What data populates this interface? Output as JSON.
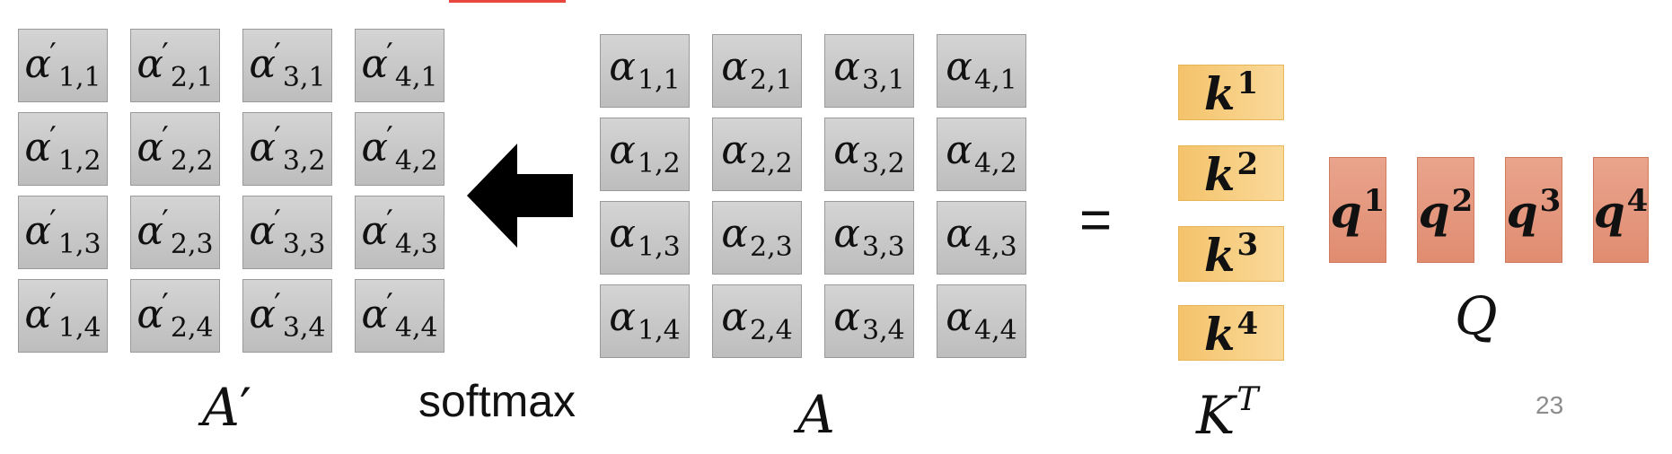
{
  "colors": {
    "cell": "#c8c8c8",
    "k_box": "#f6cd7e",
    "q_box": "#e69a80",
    "arrow": "#000000",
    "accent_bar": "#e8453c"
  },
  "a_prime_matrix": {
    "cells": [
      {
        "base": "α",
        "sub": "1,1",
        "prime": "′"
      },
      {
        "base": "α",
        "sub": "2,1",
        "prime": "′"
      },
      {
        "base": "α",
        "sub": "3,1",
        "prime": "′"
      },
      {
        "base": "α",
        "sub": "4,1",
        "prime": "′"
      },
      {
        "base": "α",
        "sub": "1,2",
        "prime": "′"
      },
      {
        "base": "α",
        "sub": "2,2",
        "prime": "′"
      },
      {
        "base": "α",
        "sub": "3,2",
        "prime": "′"
      },
      {
        "base": "α",
        "sub": "4,2",
        "prime": "′"
      },
      {
        "base": "α",
        "sub": "1,3",
        "prime": "′"
      },
      {
        "base": "α",
        "sub": "2,3",
        "prime": "′"
      },
      {
        "base": "α",
        "sub": "3,3",
        "prime": "′"
      },
      {
        "base": "α",
        "sub": "4,3",
        "prime": "′"
      },
      {
        "base": "α",
        "sub": "1,4",
        "prime": "′"
      },
      {
        "base": "α",
        "sub": "2,4",
        "prime": "′"
      },
      {
        "base": "α",
        "sub": "3,4",
        "prime": "′"
      },
      {
        "base": "α",
        "sub": "4,4",
        "prime": "′"
      }
    ],
    "label": "A",
    "label_mark": "′"
  },
  "softmax_label": "softmax",
  "a_matrix": {
    "cells": [
      {
        "base": "α",
        "sub": "1,1"
      },
      {
        "base": "α",
        "sub": "2,1"
      },
      {
        "base": "α",
        "sub": "3,1"
      },
      {
        "base": "α",
        "sub": "4,1"
      },
      {
        "base": "α",
        "sub": "1,2"
      },
      {
        "base": "α",
        "sub": "2,2"
      },
      {
        "base": "α",
        "sub": "3,2"
      },
      {
        "base": "α",
        "sub": "4,2"
      },
      {
        "base": "α",
        "sub": "1,3"
      },
      {
        "base": "α",
        "sub": "2,3"
      },
      {
        "base": "α",
        "sub": "3,3"
      },
      {
        "base": "α",
        "sub": "4,3"
      },
      {
        "base": "α",
        "sub": "1,4"
      },
      {
        "base": "α",
        "sub": "2,4"
      },
      {
        "base": "α",
        "sub": "3,4"
      },
      {
        "base": "α",
        "sub": "4,4"
      }
    ],
    "label": "A"
  },
  "equals_sign": "=",
  "k_vectors": [
    {
      "base": "k",
      "sup": "1"
    },
    {
      "base": "k",
      "sup": "2"
    },
    {
      "base": "k",
      "sup": "3"
    },
    {
      "base": "k",
      "sup": "4"
    }
  ],
  "k_label": {
    "base": "K",
    "sup": "T"
  },
  "q_vectors": [
    {
      "base": "q",
      "sup": "1"
    },
    {
      "base": "q",
      "sup": "2"
    },
    {
      "base": "q",
      "sup": "3"
    },
    {
      "base": "q",
      "sup": "4"
    }
  ],
  "q_label": "Q",
  "page_number": "23"
}
